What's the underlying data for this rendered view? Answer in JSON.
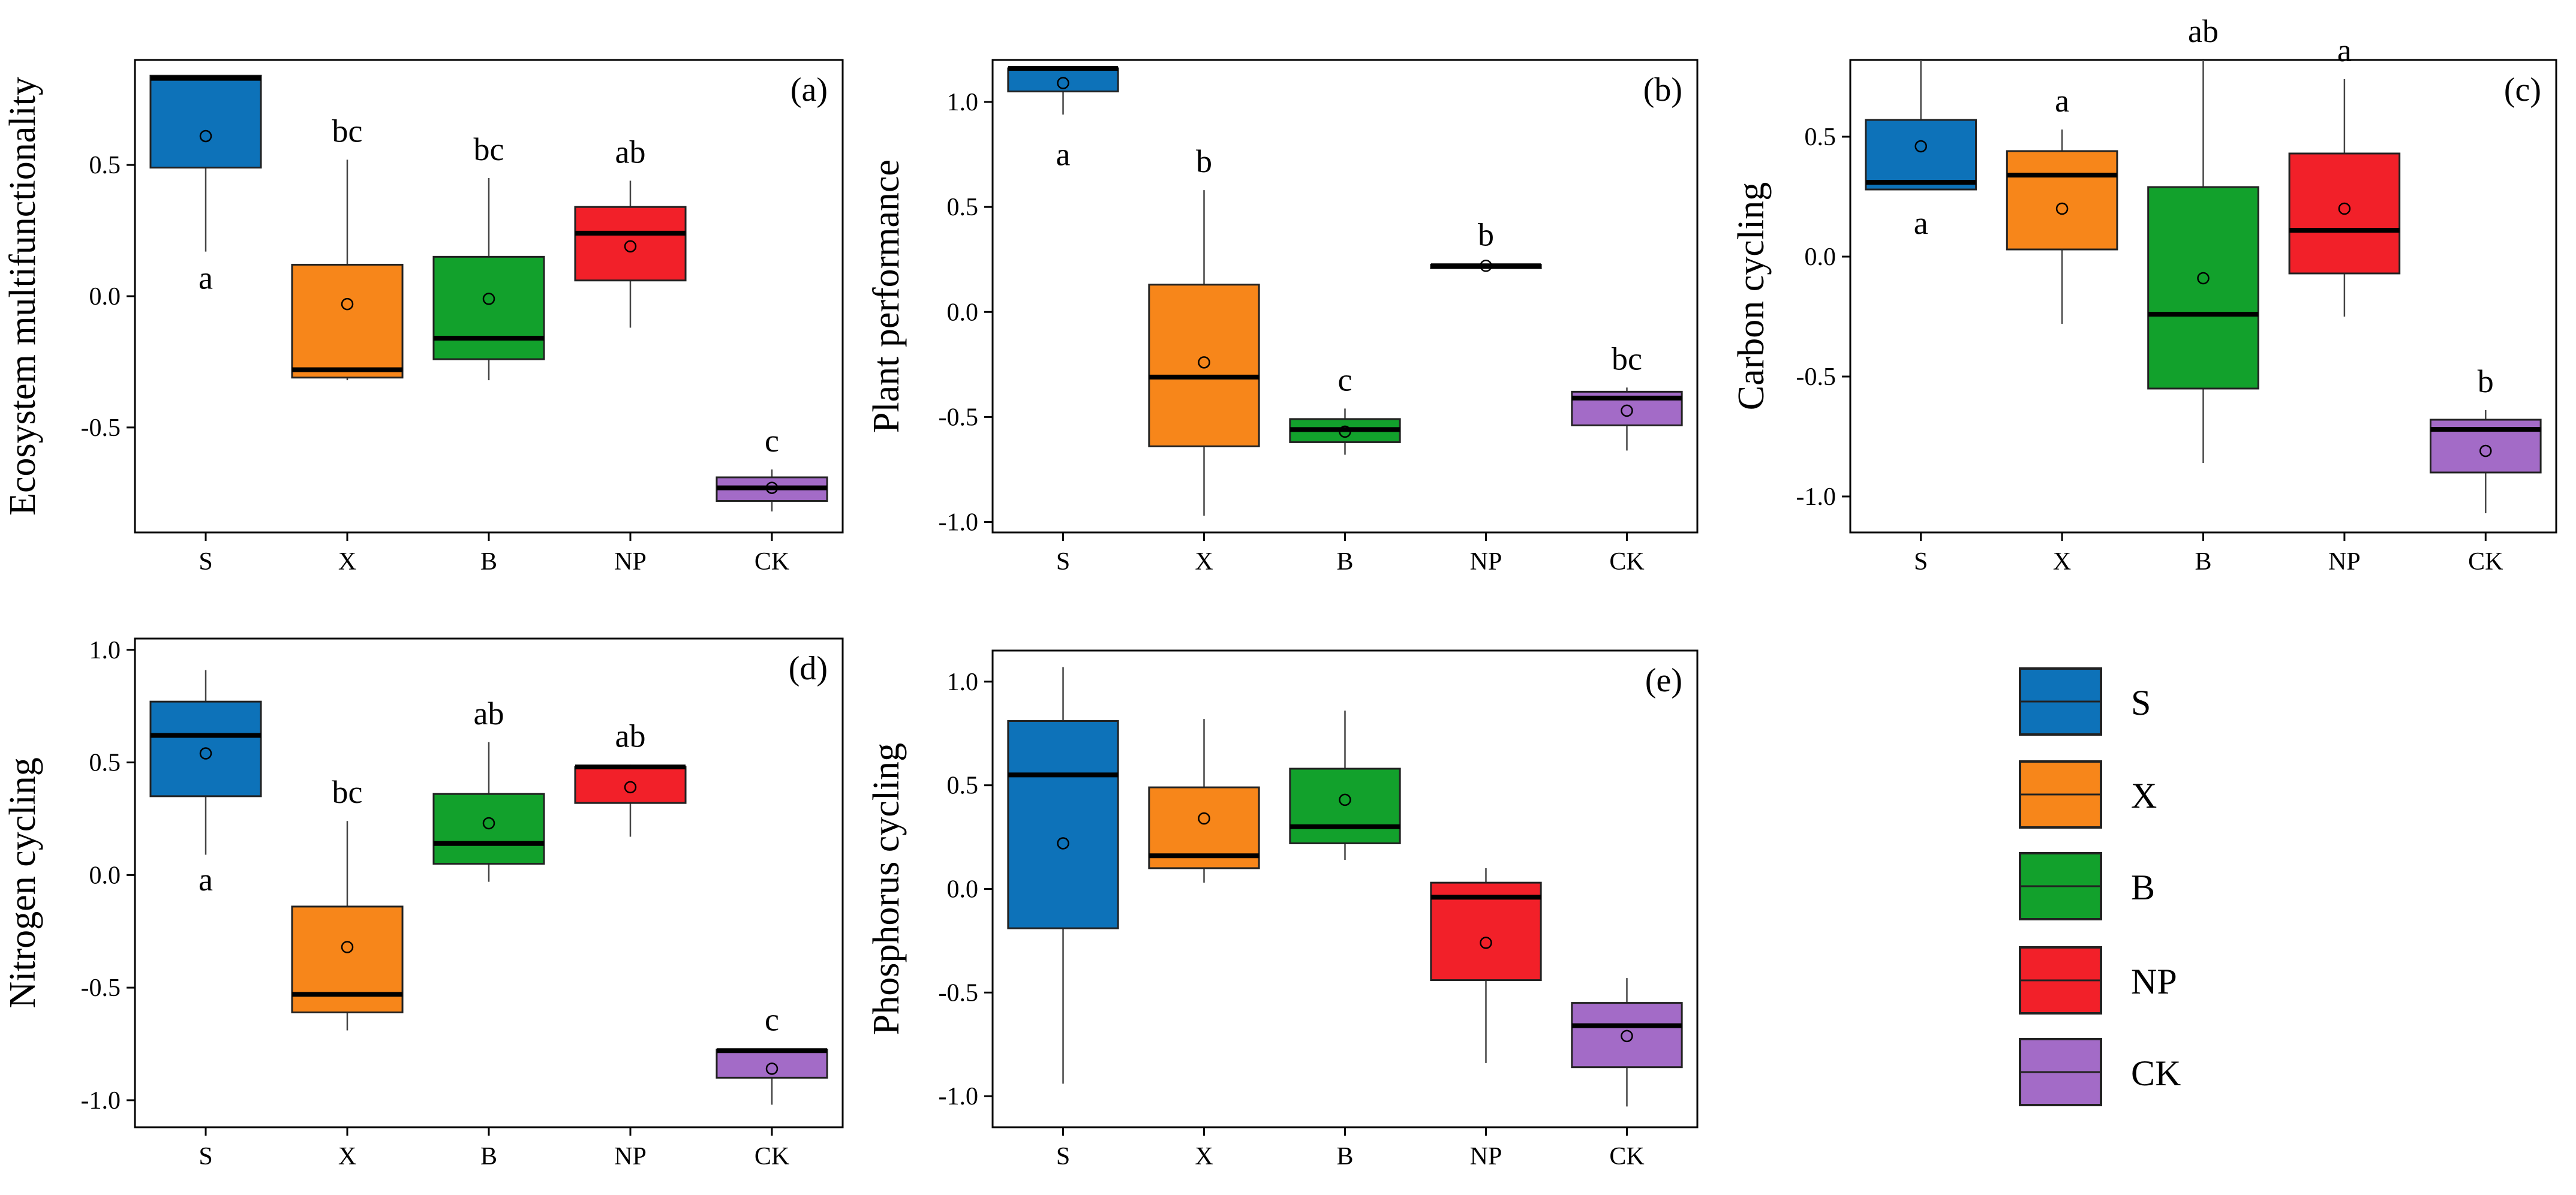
{
  "chart_data": [
    {
      "type": "box",
      "panel_label": "(a)",
      "ylabel": "Ecosystem multifunctionality",
      "categories": [
        "S",
        "X",
        "B",
        "NP",
        "CK"
      ],
      "ylim": [
        -0.9,
        0.9
      ],
      "yticks": [
        0.5,
        0.0,
        -0.5
      ],
      "ytick_labels": [
        "0.5",
        "0.0",
        "-0.5"
      ],
      "boxes": [
        {
          "min": 0.17,
          "q1": 0.49,
          "median": 0.83,
          "q3": 0.84,
          "max": 0.84,
          "mean": 0.61,
          "letter": "a",
          "letter_pos": "below",
          "letter_y": 0.07
        },
        {
          "min": -0.32,
          "q1": -0.31,
          "median": -0.28,
          "q3": 0.12,
          "max": 0.52,
          "mean": -0.03,
          "letter": "bc",
          "letter_pos": "above"
        },
        {
          "min": -0.32,
          "q1": -0.24,
          "median": -0.16,
          "q3": 0.15,
          "max": 0.45,
          "mean": -0.01,
          "letter": "bc",
          "letter_pos": "above"
        },
        {
          "min": -0.12,
          "q1": 0.06,
          "median": 0.24,
          "q3": 0.34,
          "max": 0.44,
          "mean": 0.19,
          "letter": "ab",
          "letter_pos": "above"
        },
        {
          "min": -0.82,
          "q1": -0.78,
          "median": -0.73,
          "q3": -0.69,
          "max": -0.66,
          "mean": -0.73,
          "letter": "c",
          "letter_pos": "above"
        }
      ]
    },
    {
      "type": "box",
      "panel_label": "(b)",
      "ylabel": "Plant performance",
      "categories": [
        "S",
        "X",
        "B",
        "NP",
        "CK"
      ],
      "ylim": [
        -1.05,
        1.2
      ],
      "yticks": [
        1.0,
        0.5,
        0.0,
        -0.5,
        -1.0
      ],
      "ytick_labels": [
        "1.0",
        "0.5",
        "0.0",
        "-0.5",
        "-1.0"
      ],
      "boxes": [
        {
          "min": 0.94,
          "q1": 1.05,
          "median": 1.16,
          "q3": 1.16,
          "max": 1.16,
          "mean": 1.09,
          "letter": "a",
          "letter_pos": "below",
          "letter_y": 0.75
        },
        {
          "min": -0.97,
          "q1": -0.64,
          "median": -0.31,
          "q3": 0.13,
          "max": 0.58,
          "mean": -0.24,
          "letter": "b",
          "letter_pos": "above"
        },
        {
          "min": -0.68,
          "q1": -0.62,
          "median": -0.56,
          "q3": -0.51,
          "max": -0.46,
          "mean": -0.57,
          "letter": "c",
          "letter_pos": "above"
        },
        {
          "min": 0.21,
          "q1": 0.215,
          "median": 0.22,
          "q3": 0.225,
          "max": 0.23,
          "mean": 0.22,
          "letter": "b",
          "letter_pos": "above"
        },
        {
          "min": -0.66,
          "q1": -0.54,
          "median": -0.41,
          "q3": -0.38,
          "max": -0.36,
          "mean": -0.47,
          "letter": "bc",
          "letter_pos": "above"
        }
      ]
    },
    {
      "type": "box",
      "panel_label": "(c)",
      "ylabel": "Carbon cycling",
      "categories": [
        "S",
        "X",
        "B",
        "NP",
        "CK"
      ],
      "ylim": [
        -1.15,
        0.82
      ],
      "yticks": [
        0.5,
        0.0,
        -0.5,
        -1.0
      ],
      "ytick_labels": [
        "0.5",
        "0.0",
        "-0.5",
        "-1.0"
      ],
      "boxes": [
        {
          "min": 0.28,
          "q1": 0.28,
          "median": 0.31,
          "q3": 0.57,
          "max": 0.82,
          "mean": 0.46,
          "letter": "a",
          "letter_pos": "below",
          "letter_y": 0.14
        },
        {
          "min": -0.28,
          "q1": 0.03,
          "median": 0.34,
          "q3": 0.44,
          "max": 0.53,
          "mean": 0.2,
          "letter": "a",
          "letter_pos": "above"
        },
        {
          "min": -0.86,
          "q1": -0.55,
          "median": -0.24,
          "q3": 0.29,
          "max": 0.82,
          "mean": -0.09,
          "letter": "ab",
          "letter_pos": "above"
        },
        {
          "min": -0.25,
          "q1": -0.07,
          "median": 0.11,
          "q3": 0.43,
          "max": 0.74,
          "mean": 0.2,
          "letter": "a",
          "letter_pos": "above"
        },
        {
          "min": -1.07,
          "q1": -0.9,
          "median": -0.72,
          "q3": -0.68,
          "max": -0.64,
          "mean": -0.81,
          "letter": "b",
          "letter_pos": "above"
        }
      ]
    },
    {
      "type": "box",
      "panel_label": "(d)",
      "ylabel": "Nitrogen cycling",
      "categories": [
        "S",
        "X",
        "B",
        "NP",
        "CK"
      ],
      "ylim": [
        -1.12,
        1.05
      ],
      "yticks": [
        1.0,
        0.5,
        0.0,
        -0.5,
        -1.0
      ],
      "ytick_labels": [
        "1.0",
        "0.5",
        "0.0",
        "-0.5",
        "-1.0"
      ],
      "boxes": [
        {
          "min": 0.09,
          "q1": 0.35,
          "median": 0.62,
          "q3": 0.77,
          "max": 0.91,
          "mean": 0.54,
          "letter": "a",
          "letter_pos": "below",
          "letter_y": -0.02
        },
        {
          "min": -0.69,
          "q1": -0.61,
          "median": -0.53,
          "q3": -0.14,
          "max": 0.24,
          "mean": -0.32,
          "letter": "bc",
          "letter_pos": "above"
        },
        {
          "min": -0.03,
          "q1": 0.05,
          "median": 0.14,
          "q3": 0.36,
          "max": 0.59,
          "mean": 0.23,
          "letter": "ab",
          "letter_pos": "above"
        },
        {
          "min": 0.17,
          "q1": 0.32,
          "median": 0.48,
          "q3": 0.48,
          "max": 0.49,
          "mean": 0.39,
          "letter": "ab",
          "letter_pos": "above"
        },
        {
          "min": -1.02,
          "q1": -0.9,
          "median": -0.78,
          "q3": -0.775,
          "max": -0.77,
          "mean": -0.86,
          "letter": "c",
          "letter_pos": "above"
        }
      ]
    },
    {
      "type": "box",
      "panel_label": "(e)",
      "ylabel": "Phosphorus cycling",
      "categories": [
        "S",
        "X",
        "B",
        "NP",
        "CK"
      ],
      "ylim": [
        -1.15,
        1.15
      ],
      "yticks": [
        1.0,
        0.5,
        0.0,
        -0.5,
        -1.0
      ],
      "ytick_labels": [
        "1.0",
        "0.5",
        "0.0",
        "-0.5",
        "-1.0"
      ],
      "boxes": [
        {
          "min": -0.94,
          "q1": -0.19,
          "median": 0.55,
          "q3": 0.81,
          "max": 1.07,
          "mean": 0.22
        },
        {
          "min": 0.03,
          "q1": 0.1,
          "median": 0.16,
          "q3": 0.49,
          "max": 0.82,
          "mean": 0.34
        },
        {
          "min": 0.14,
          "q1": 0.22,
          "median": 0.3,
          "q3": 0.58,
          "max": 0.86,
          "mean": 0.43
        },
        {
          "min": -0.84,
          "q1": -0.44,
          "median": -0.04,
          "q3": 0.03,
          "max": 0.1,
          "mean": -0.26
        },
        {
          "min": -1.05,
          "q1": -0.86,
          "median": -0.66,
          "q3": -0.55,
          "max": -0.43,
          "mean": -0.71
        }
      ]
    }
  ],
  "series_colors": {
    "S": "#0d72b9",
    "X": "#f7861a",
    "B": "#12a12c",
    "NP": "#f22029",
    "CK": "#a36bc7"
  },
  "legend": {
    "entries": [
      "S",
      "X",
      "B",
      "NP",
      "CK"
    ]
  }
}
